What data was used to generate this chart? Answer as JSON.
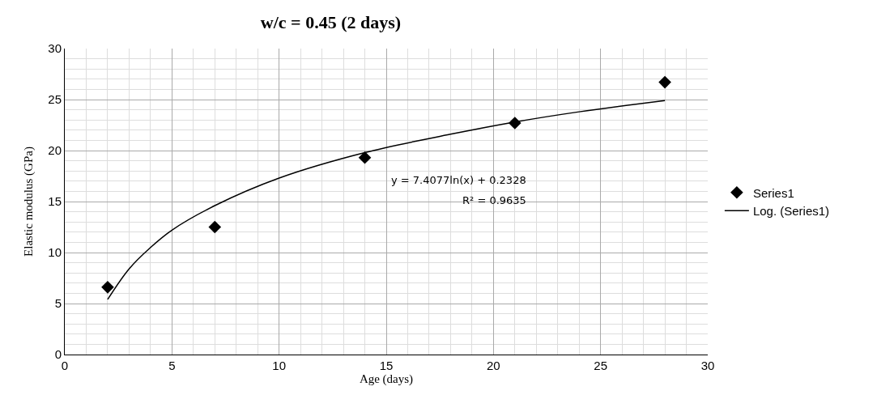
{
  "chart_data": {
    "type": "scatter",
    "title": "w/c = 0.45 (2 days)",
    "xlabel": "Age (days)",
    "ylabel": "Elastic modulus (GPa)",
    "xlim": [
      0,
      30
    ],
    "xticks": [
      0,
      5,
      10,
      15,
      20,
      25,
      30
    ],
    "ylim": [
      0,
      30
    ],
    "yticks": [
      0,
      5,
      10,
      15,
      20,
      25,
      30
    ],
    "grid": true,
    "legend": "right",
    "series": [
      {
        "name": "Series1",
        "type": "scatter",
        "marker": "diamond",
        "color": "#000000",
        "x": [
          2,
          7,
          14,
          21,
          28
        ],
        "values": [
          6.6,
          12.5,
          19.3,
          22.7,
          26.7
        ]
      },
      {
        "name": "Log. (Series1)",
        "type": "line",
        "marker": "none",
        "color": "#000000",
        "x": [
          2,
          3,
          4,
          5,
          7,
          10,
          14,
          18,
          21,
          24,
          28
        ],
        "values": [
          5.4,
          8.4,
          10.5,
          12.2,
          14.6,
          17.3,
          19.8,
          21.6,
          22.8,
          23.8,
          24.9
        ]
      }
    ],
    "annotations": [
      "y = 7.4077ln(x) + 0.2328",
      "R² = 0.9635"
    ]
  }
}
